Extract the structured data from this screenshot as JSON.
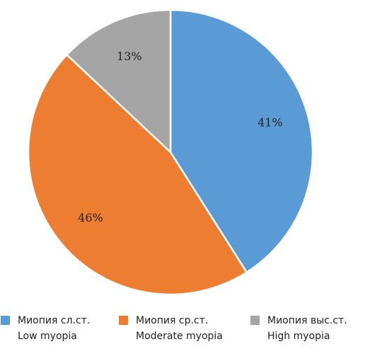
{
  "chart_data": {
    "type": "pie",
    "title": "",
    "start_angle_deg": 0,
    "direction": "clockwise",
    "slices": [
      {
        "label_ru": "Миопия сл.ст.",
        "label_en": "Low myopia",
        "value": 41,
        "value_label": "41%",
        "color": "#5b9bd5"
      },
      {
        "label_ru": "Миопия ср.ст.",
        "label_en": "Moderate myopia",
        "value": 46,
        "value_label": "46%",
        "color": "#ed7d31"
      },
      {
        "label_ru": "Миопия выс.ст.",
        "label_en": "High myopia",
        "value": 13,
        "value_label": "13%",
        "color": "#a5a5a5"
      }
    ],
    "legend_position": "bottom"
  }
}
